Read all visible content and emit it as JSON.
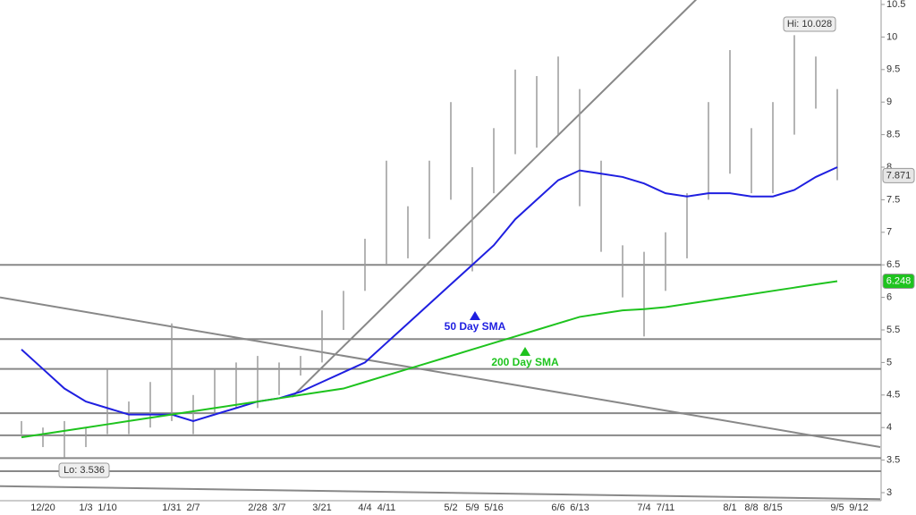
{
  "chart_data": {
    "type": "ohlc",
    "categories": [
      null,
      "12/20",
      null,
      "1/3",
      "1/10",
      null,
      null,
      "1/31",
      "2/7",
      null,
      null,
      "2/28",
      "3/7",
      null,
      "3/21",
      null,
      "4/4",
      "4/11",
      null,
      null,
      "5/2",
      "5/9",
      "5/16",
      null,
      null,
      "6/6",
      "6/13",
      null,
      null,
      "7/4",
      "7/11",
      null,
      null,
      "8/1",
      "8/8",
      "8/15",
      null,
      null,
      "9/5",
      "9/12"
    ],
    "price": {
      "color": "#9a9a9a",
      "high": [
        4.1,
        4.0,
        4.1,
        4.0,
        4.9,
        4.4,
        4.7,
        5.6,
        4.5,
        4.9,
        5.0,
        5.1,
        5.0,
        5.1,
        5.8,
        6.1,
        6.9,
        8.1,
        7.4,
        8.1,
        9.0,
        8.0,
        8.6,
        9.5,
        9.4,
        9.7,
        9.2,
        8.1,
        6.8,
        6.7,
        7.0,
        7.6,
        9.0,
        9.8,
        8.6,
        9.0,
        10.028,
        9.7,
        9.2
      ],
      "low": [
        3.9,
        3.7,
        3.536,
        3.7,
        3.9,
        3.9,
        4.0,
        4.1,
        3.9,
        4.2,
        4.3,
        4.3,
        4.5,
        4.8,
        5.0,
        5.5,
        6.1,
        6.5,
        6.6,
        6.9,
        7.5,
        6.4,
        7.6,
        8.2,
        8.3,
        8.5,
        7.4,
        6.7,
        6.0,
        5.4,
        6.1,
        6.6,
        7.5,
        7.9,
        7.6,
        7.6,
        8.5,
        8.9,
        7.8
      ]
    },
    "last": 7.871,
    "sma50": {
      "name": "50 Day SMA",
      "color": "#1f1fe0",
      "values": [
        5.2,
        4.9,
        4.6,
        4.4,
        4.3,
        4.2,
        4.2,
        4.2,
        4.1,
        4.2,
        4.3,
        4.4,
        4.45,
        4.55,
        4.7,
        4.85,
        5.0,
        5.3,
        5.6,
        5.9,
        6.2,
        6.5,
        6.8,
        7.2,
        7.5,
        7.8,
        7.95,
        7.9,
        7.85,
        7.75,
        7.6,
        7.55,
        7.6,
        7.6,
        7.55,
        7.55,
        7.65,
        7.85,
        8.0
      ]
    },
    "sma200": {
      "name": "200 Day SMA",
      "color": "#1ec31e",
      "values": [
        3.85,
        3.9,
        3.95,
        4.0,
        4.05,
        4.1,
        4.15,
        4.2,
        4.25,
        4.3,
        4.35,
        4.4,
        4.45,
        4.5,
        4.55,
        4.6,
        4.7,
        4.8,
        4.9,
        5.0,
        5.1,
        5.2,
        5.3,
        5.4,
        5.5,
        5.6,
        5.7,
        5.75,
        5.8,
        5.82,
        5.85,
        5.9,
        5.95,
        6.0,
        6.05,
        6.1,
        6.15,
        6.2,
        6.248
      ]
    },
    "high_label": "Hi: 10.028",
    "low_label": "Lo: 3.536",
    "levels": [
      6.5,
      5.36,
      4.9,
      4.22,
      3.88,
      3.53,
      3.33
    ],
    "trendlines": [
      {
        "from": [
          -1,
          6.0
        ],
        "to": [
          40,
          3.7
        ]
      },
      {
        "from": [
          12.6,
          4.47
        ],
        "to": [
          31.5,
          10.6
        ]
      },
      {
        "from": [
          -1,
          3.1
        ],
        "to": [
          40,
          2.9
        ]
      }
    ],
    "ylim": [
      3,
      10.5
    ],
    "yticks": [
      3,
      3.5,
      4,
      4.5,
      5,
      5.5,
      6,
      6.5,
      7,
      7.5,
      8,
      8.5,
      9,
      9.5,
      10,
      10.5
    ]
  }
}
